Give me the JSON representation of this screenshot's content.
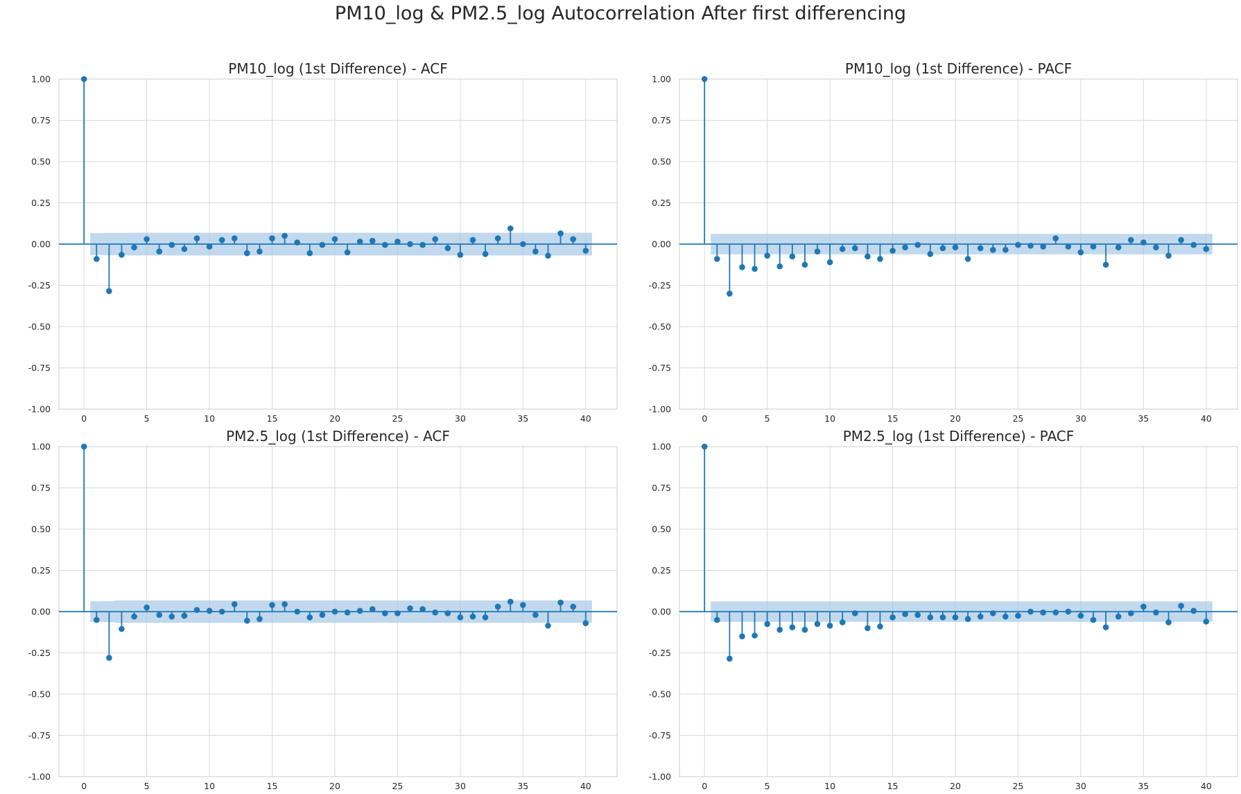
{
  "suptitle": "PM10_log & PM2.5_log Autocorrelation After first differencing",
  "colors": {
    "stem": "#1f77b4",
    "band": "#a6c8e6",
    "grid": "#d9d9d9",
    "spine": "#cccccc"
  },
  "chart_data": [
    {
      "type": "stem",
      "title": "PM10_log (1st Difference) - ACF",
      "xlim": [
        -2,
        42.5
      ],
      "ylim": [
        -1,
        1
      ],
      "xticks": [
        0,
        5,
        10,
        15,
        20,
        25,
        30,
        35,
        40
      ],
      "yticks": [
        -1.0,
        -0.75,
        -0.5,
        -0.25,
        0.0,
        0.25,
        0.5,
        0.75,
        1.0
      ],
      "confidence_band": [
        0.066,
        0.068,
        0.068,
        0.069,
        0.069,
        0.069,
        0.069,
        0.069,
        0.069,
        0.069,
        0.069,
        0.069,
        0.069,
        0.069,
        0.069,
        0.069,
        0.069,
        0.069,
        0.069,
        0.069,
        0.069,
        0.069,
        0.069,
        0.069,
        0.069,
        0.069,
        0.069,
        0.069,
        0.069,
        0.069,
        0.069,
        0.069,
        0.069,
        0.069,
        0.069,
        0.069,
        0.069,
        0.069,
        0.069,
        0.069
      ],
      "lags": [
        0,
        1,
        2,
        3,
        4,
        5,
        6,
        7,
        8,
        9,
        10,
        11,
        12,
        13,
        14,
        15,
        16,
        17,
        18,
        19,
        20,
        21,
        22,
        23,
        24,
        25,
        26,
        27,
        28,
        29,
        30,
        31,
        32,
        33,
        34,
        35,
        36,
        37,
        38,
        39,
        40
      ],
      "values": [
        1.0,
        -0.09,
        -0.285,
        -0.065,
        -0.02,
        0.03,
        -0.045,
        -0.005,
        -0.03,
        0.035,
        -0.015,
        0.025,
        0.035,
        -0.055,
        -0.045,
        0.035,
        0.05,
        0.01,
        -0.055,
        -0.005,
        0.03,
        -0.05,
        0.015,
        0.02,
        -0.005,
        0.015,
        0.0,
        -0.005,
        0.03,
        -0.025,
        -0.065,
        0.025,
        -0.06,
        0.035,
        0.095,
        0.0,
        -0.045,
        -0.07,
        0.065,
        0.03,
        -0.04
      ]
    },
    {
      "type": "stem",
      "title": "PM10_log (1st Difference) - PACF",
      "xlim": [
        -2,
        42.5
      ],
      "ylim": [
        -1,
        1
      ],
      "xticks": [
        0,
        5,
        10,
        15,
        20,
        25,
        30,
        35,
        40
      ],
      "yticks": [
        -1.0,
        -0.75,
        -0.5,
        -0.25,
        0.0,
        0.25,
        0.5,
        0.75,
        1.0
      ],
      "confidence_band": [
        0.062,
        0.062,
        0.062,
        0.062,
        0.062,
        0.062,
        0.062,
        0.062,
        0.062,
        0.062,
        0.062,
        0.062,
        0.062,
        0.062,
        0.062,
        0.062,
        0.062,
        0.062,
        0.062,
        0.062,
        0.062,
        0.062,
        0.062,
        0.062,
        0.062,
        0.062,
        0.062,
        0.062,
        0.062,
        0.062,
        0.062,
        0.062,
        0.062,
        0.062,
        0.062,
        0.062,
        0.062,
        0.062,
        0.062,
        0.062
      ],
      "lags": [
        0,
        1,
        2,
        3,
        4,
        5,
        6,
        7,
        8,
        9,
        10,
        11,
        12,
        13,
        14,
        15,
        16,
        17,
        18,
        19,
        20,
        21,
        22,
        23,
        24,
        25,
        26,
        27,
        28,
        29,
        30,
        31,
        32,
        33,
        34,
        35,
        36,
        37,
        38,
        39,
        40
      ],
      "values": [
        1.0,
        -0.09,
        -0.3,
        -0.14,
        -0.15,
        -0.07,
        -0.135,
        -0.075,
        -0.125,
        -0.045,
        -0.11,
        -0.03,
        -0.025,
        -0.075,
        -0.09,
        -0.04,
        -0.02,
        -0.005,
        -0.06,
        -0.025,
        -0.02,
        -0.09,
        -0.025,
        -0.035,
        -0.035,
        -0.005,
        -0.01,
        -0.015,
        0.035,
        -0.015,
        -0.05,
        -0.015,
        -0.125,
        -0.02,
        0.025,
        0.01,
        -0.02,
        -0.07,
        0.025,
        -0.005,
        -0.03
      ]
    },
    {
      "type": "stem",
      "title": "PM2.5_log (1st Difference) - ACF",
      "xlim": [
        -2,
        42.5
      ],
      "ylim": [
        -1,
        1
      ],
      "xticks": [
        0,
        5,
        10,
        15,
        20,
        25,
        30,
        35,
        40
      ],
      "yticks": [
        -1.0,
        -0.75,
        -0.5,
        -0.25,
        0.0,
        0.25,
        0.5,
        0.75,
        1.0
      ],
      "confidence_band": [
        0.062,
        0.064,
        0.068,
        0.068,
        0.068,
        0.068,
        0.068,
        0.068,
        0.068,
        0.068,
        0.068,
        0.068,
        0.068,
        0.068,
        0.068,
        0.068,
        0.068,
        0.068,
        0.068,
        0.068,
        0.068,
        0.068,
        0.068,
        0.068,
        0.068,
        0.068,
        0.068,
        0.068,
        0.068,
        0.068,
        0.068,
        0.068,
        0.068,
        0.068,
        0.068,
        0.068,
        0.068,
        0.068,
        0.068,
        0.068
      ],
      "lags": [
        0,
        1,
        2,
        3,
        4,
        5,
        6,
        7,
        8,
        9,
        10,
        11,
        12,
        13,
        14,
        15,
        16,
        17,
        18,
        19,
        20,
        21,
        22,
        23,
        24,
        25,
        26,
        27,
        28,
        29,
        30,
        31,
        32,
        33,
        34,
        35,
        36,
        37,
        38,
        39,
        40
      ],
      "values": [
        1.0,
        -0.05,
        -0.28,
        -0.105,
        -0.03,
        0.025,
        -0.02,
        -0.03,
        -0.025,
        0.01,
        0.005,
        0.0,
        0.045,
        -0.055,
        -0.045,
        0.04,
        0.045,
        0.0,
        -0.035,
        -0.02,
        0.0,
        -0.005,
        0.005,
        0.015,
        -0.01,
        -0.01,
        0.02,
        0.015,
        -0.005,
        -0.01,
        -0.035,
        -0.03,
        -0.035,
        0.03,
        0.06,
        0.04,
        -0.02,
        -0.085,
        0.055,
        0.03,
        -0.07
      ]
    },
    {
      "type": "stem",
      "title": "PM2.5_log (1st Difference) - PACF",
      "xlim": [
        -2,
        42.5
      ],
      "ylim": [
        -1,
        1
      ],
      "xticks": [
        0,
        5,
        10,
        15,
        20,
        25,
        30,
        35,
        40
      ],
      "yticks": [
        -1.0,
        -0.75,
        -0.5,
        -0.25,
        0.0,
        0.25,
        0.5,
        0.75,
        1.0
      ],
      "confidence_band": [
        0.062,
        0.062,
        0.062,
        0.062,
        0.062,
        0.062,
        0.062,
        0.062,
        0.062,
        0.062,
        0.062,
        0.062,
        0.062,
        0.062,
        0.062,
        0.062,
        0.062,
        0.062,
        0.062,
        0.062,
        0.062,
        0.062,
        0.062,
        0.062,
        0.062,
        0.062,
        0.062,
        0.062,
        0.062,
        0.062,
        0.062,
        0.062,
        0.062,
        0.062,
        0.062,
        0.062,
        0.062,
        0.062,
        0.062,
        0.062
      ],
      "lags": [
        0,
        1,
        2,
        3,
        4,
        5,
        6,
        7,
        8,
        9,
        10,
        11,
        12,
        13,
        14,
        15,
        16,
        17,
        18,
        19,
        20,
        21,
        22,
        23,
        24,
        25,
        26,
        27,
        28,
        29,
        30,
        31,
        32,
        33,
        34,
        35,
        36,
        37,
        38,
        39,
        40
      ],
      "values": [
        1.0,
        -0.05,
        -0.285,
        -0.15,
        -0.145,
        -0.075,
        -0.11,
        -0.095,
        -0.11,
        -0.075,
        -0.085,
        -0.065,
        -0.01,
        -0.1,
        -0.09,
        -0.035,
        -0.015,
        -0.02,
        -0.035,
        -0.035,
        -0.035,
        -0.045,
        -0.03,
        -0.01,
        -0.03,
        -0.025,
        0.0,
        -0.005,
        -0.005,
        0.0,
        -0.025,
        -0.05,
        -0.095,
        -0.03,
        -0.01,
        0.03,
        -0.005,
        -0.065,
        0.035,
        0.005,
        -0.06
      ]
    }
  ]
}
